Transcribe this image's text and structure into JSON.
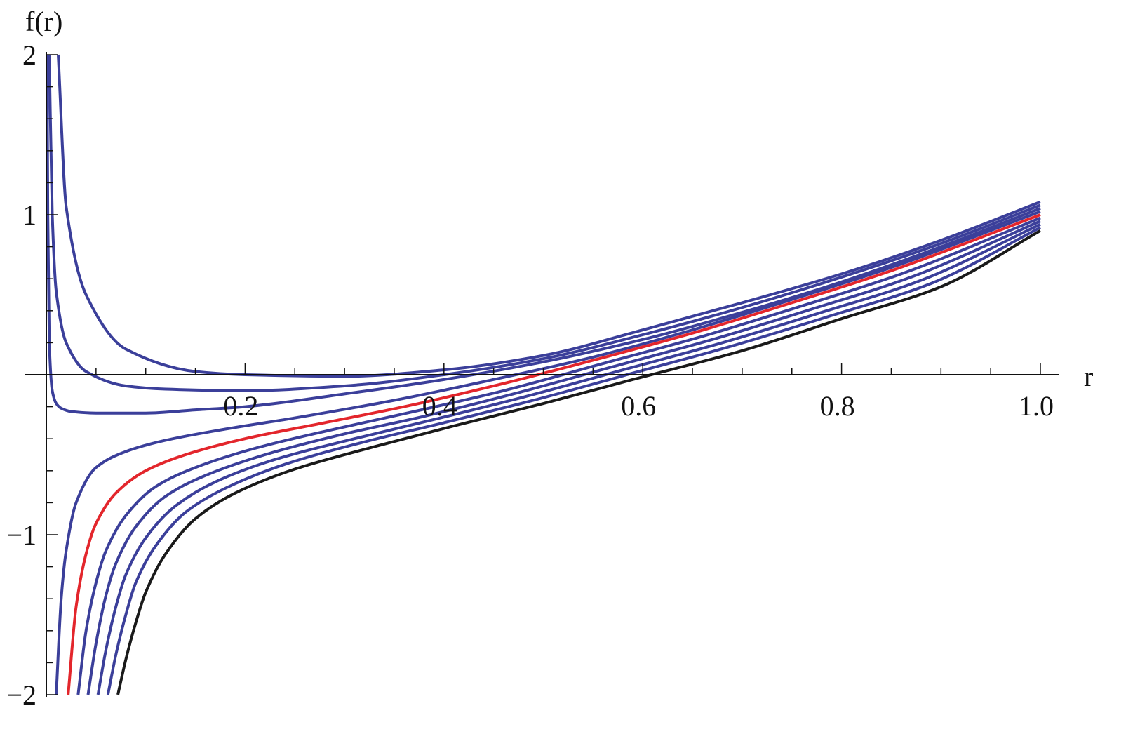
{
  "chart_data": {
    "type": "line",
    "title": "",
    "xlabel": "r",
    "ylabel": "f(r)",
    "xlim": [
      0,
      1.0
    ],
    "ylim": [
      -2,
      2
    ],
    "x_ticks": [
      "0.2",
      "0.4",
      "0.6",
      "0.8",
      "1.0"
    ],
    "y_ticks": [
      "2",
      "1",
      "−1",
      "−2"
    ],
    "x_tick_values": [
      0.2,
      0.4,
      0.6,
      0.8,
      1.0
    ],
    "y_tick_values": [
      2,
      1,
      -1,
      -2
    ],
    "grid": false,
    "legend": "none",
    "colors": {
      "default": "#3b3f9a",
      "highlight": "#e3262c",
      "lower": "#1a1a1a",
      "axis": "#111111"
    },
    "series": [
      {
        "color": "#3b3f9a",
        "x": [
          0.012,
          0.02,
          0.04,
          0.08,
          0.15,
          0.2,
          0.3,
          0.4,
          0.5,
          0.6,
          0.7,
          0.8,
          0.9,
          1.0
        ],
        "y": [
          2.0,
          1.05,
          0.5,
          0.16,
          0.02,
          0.0,
          -0.01,
          0.03,
          0.12,
          0.28,
          0.45,
          0.63,
          0.84,
          1.08
        ]
      },
      {
        "color": "#3b3f9a",
        "x": [
          0.003,
          0.006,
          0.01,
          0.02,
          0.04,
          0.08,
          0.12,
          0.2,
          0.3,
          0.4,
          0.5,
          0.6,
          0.7,
          0.8,
          0.9,
          1.0
        ],
        "y": [
          2.0,
          1.0,
          0.52,
          0.2,
          0.02,
          -0.07,
          -0.09,
          -0.1,
          -0.07,
          0.0,
          0.1,
          0.25,
          0.42,
          0.61,
          0.82,
          1.06
        ]
      },
      {
        "color": "#3b3f9a",
        "x": [
          0.0008,
          0.0015,
          0.003,
          0.006,
          0.01,
          0.015,
          0.025,
          0.05,
          0.1,
          0.15,
          0.2,
          0.3,
          0.4,
          0.5,
          0.6,
          0.7,
          0.8,
          0.9,
          1.0
        ],
        "y": [
          2.0,
          1.0,
          0.2,
          -0.1,
          -0.18,
          -0.21,
          -0.23,
          -0.24,
          -0.24,
          -0.22,
          -0.2,
          -0.12,
          -0.03,
          0.08,
          0.22,
          0.39,
          0.58,
          0.8,
          1.04
        ]
      },
      {
        "color": "#3b3f9a",
        "x": [
          0.01,
          0.015,
          0.02,
          0.03,
          0.05,
          0.08,
          0.12,
          0.18,
          0.25,
          0.35,
          0.45,
          0.55,
          0.65,
          0.75,
          0.85,
          1.0
        ],
        "y": [
          -2.0,
          -1.4,
          -1.1,
          -0.8,
          -0.58,
          -0.48,
          -0.41,
          -0.34,
          -0.27,
          -0.16,
          -0.03,
          0.11,
          0.28,
          0.47,
          0.67,
          1.02
        ]
      },
      {
        "color": "#e3262c",
        "x": [
          0.022,
          0.03,
          0.04,
          0.05,
          0.07,
          0.1,
          0.14,
          0.2,
          0.28,
          0.36,
          0.45,
          0.55,
          0.65,
          0.75,
          0.85,
          1.0
        ],
        "y": [
          -2.0,
          -1.45,
          -1.12,
          -0.93,
          -0.74,
          -0.6,
          -0.5,
          -0.4,
          -0.3,
          -0.2,
          -0.07,
          0.09,
          0.26,
          0.45,
          0.65,
          1.0
        ]
      },
      {
        "color": "#3b3f9a",
        "x": [
          0.032,
          0.04,
          0.05,
          0.06,
          0.08,
          0.11,
          0.15,
          0.21,
          0.29,
          0.37,
          0.46,
          0.56,
          0.66,
          0.76,
          0.86,
          1.0
        ],
        "y": [
          -2.0,
          -1.6,
          -1.3,
          -1.1,
          -0.88,
          -0.7,
          -0.58,
          -0.46,
          -0.34,
          -0.23,
          -0.1,
          0.07,
          0.24,
          0.43,
          0.63,
          0.98
        ]
      },
      {
        "color": "#3b3f9a",
        "x": [
          0.042,
          0.05,
          0.06,
          0.07,
          0.09,
          0.12,
          0.16,
          0.22,
          0.3,
          0.38,
          0.47,
          0.57,
          0.67,
          0.77,
          0.87,
          1.0
        ],
        "y": [
          -2.0,
          -1.68,
          -1.38,
          -1.18,
          -0.95,
          -0.76,
          -0.63,
          -0.5,
          -0.37,
          -0.26,
          -0.12,
          0.05,
          0.22,
          0.41,
          0.61,
          0.96
        ]
      },
      {
        "color": "#3b3f9a",
        "x": [
          0.052,
          0.06,
          0.07,
          0.08,
          0.1,
          0.13,
          0.17,
          0.23,
          0.31,
          0.39,
          0.48,
          0.58,
          0.68,
          0.78,
          0.88,
          1.0
        ],
        "y": [
          -2.0,
          -1.72,
          -1.45,
          -1.25,
          -1.02,
          -0.82,
          -0.67,
          -0.53,
          -0.4,
          -0.28,
          -0.14,
          0.03,
          0.2,
          0.39,
          0.59,
          0.94
        ]
      },
      {
        "color": "#3b3f9a",
        "x": [
          0.062,
          0.07,
          0.08,
          0.09,
          0.11,
          0.14,
          0.18,
          0.24,
          0.32,
          0.4,
          0.49,
          0.59,
          0.69,
          0.79,
          0.89,
          1.0
        ],
        "y": [
          -2.0,
          -1.75,
          -1.5,
          -1.3,
          -1.07,
          -0.86,
          -0.71,
          -0.56,
          -0.42,
          -0.3,
          -0.16,
          0.01,
          0.18,
          0.37,
          0.57,
          0.92
        ]
      },
      {
        "color": "#1a1a1a",
        "x": [
          0.072,
          0.08,
          0.09,
          0.1,
          0.12,
          0.15,
          0.19,
          0.25,
          0.33,
          0.41,
          0.5,
          0.59,
          0.7,
          0.8,
          0.9,
          1.0
        ],
        "y": [
          -2.0,
          -1.78,
          -1.55,
          -1.36,
          -1.12,
          -0.9,
          -0.74,
          -0.59,
          -0.45,
          -0.32,
          -0.18,
          -0.03,
          0.15,
          0.35,
          0.55,
          0.9
        ]
      }
    ]
  }
}
